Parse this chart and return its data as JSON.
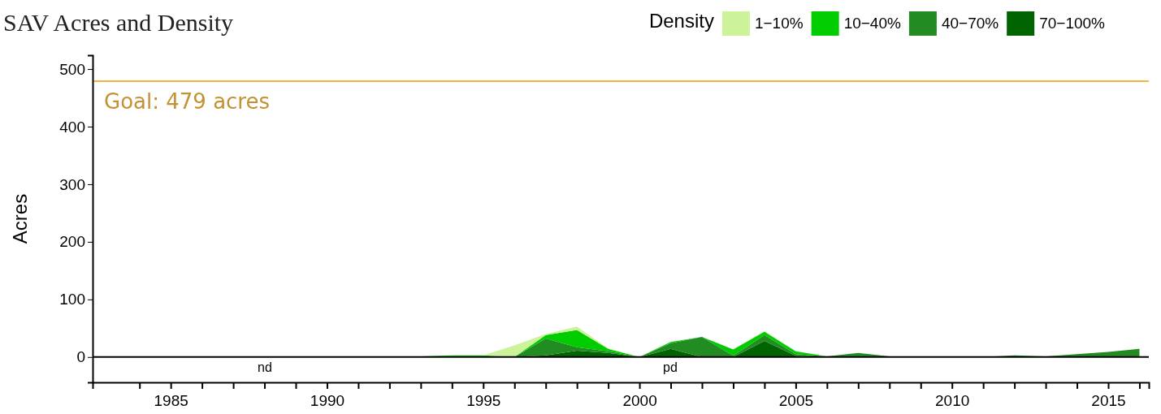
{
  "chart_data": {
    "type": "area",
    "title": "SAV Acres and Density",
    "ylabel": "Acres",
    "legend_title": "Density",
    "legend": "top right",
    "stacked": true,
    "grid": false,
    "x": [
      1984,
      1985,
      1986,
      1987,
      1988,
      1989,
      1990,
      1991,
      1992,
      1993,
      1994,
      1995,
      1996,
      1997,
      1998,
      1999,
      2000,
      2001,
      2002,
      2003,
      2004,
      2005,
      2006,
      2007,
      2008,
      2009,
      2010,
      2011,
      2012,
      2013,
      2014,
      2015,
      2016
    ],
    "series": [
      {
        "name": "70−100%",
        "color": "#006400",
        "values": [
          null,
          null,
          null,
          null,
          null,
          null,
          null,
          null,
          0,
          0,
          0,
          0,
          0,
          3,
          11,
          7,
          0,
          14,
          0,
          0,
          28,
          2,
          0,
          0,
          0,
          0,
          0,
          0,
          0,
          0,
          0,
          0,
          0
        ]
      },
      {
        "name": "40−70%",
        "color": "#228b22",
        "values": [
          1,
          1,
          null,
          null,
          null,
          null,
          null,
          null,
          1,
          1,
          0,
          0,
          0,
          29,
          6,
          3,
          0,
          10,
          35,
          2,
          10,
          3,
          1,
          7,
          1,
          0,
          0,
          0,
          3,
          1,
          5,
          9,
          14
        ]
      },
      {
        "name": "10−40%",
        "color": "#00cc00",
        "values": [
          null,
          null,
          null,
          null,
          null,
          null,
          null,
          null,
          0,
          0,
          3,
          3,
          0,
          6,
          30,
          4,
          0,
          2,
          0,
          11,
          6,
          5,
          0,
          0,
          0,
          0,
          0,
          0,
          0,
          0,
          0,
          0,
          0
        ]
      },
      {
        "name": "1−10%",
        "color": "#ccf29a",
        "values": [
          null,
          null,
          null,
          null,
          null,
          null,
          null,
          null,
          0,
          0,
          0,
          0,
          20,
          2,
          6,
          1,
          0,
          0,
          0,
          0,
          1,
          0,
          0,
          0,
          0,
          0,
          0,
          0,
          0,
          0,
          0,
          0,
          0
        ]
      }
    ],
    "xlim": [
      1982.5,
      2016.3
    ],
    "xticks": [
      {
        "value": 1984,
        "label": null
      },
      {
        "value": 1985,
        "label": "1985"
      },
      {
        "value": 1986,
        "label": null
      },
      {
        "value": 1987,
        "label": null
      },
      {
        "value": 1988,
        "label": null
      },
      {
        "value": 1989,
        "label": null
      },
      {
        "value": 1990,
        "label": "1990"
      },
      {
        "value": 1991,
        "label": null
      },
      {
        "value": 1992,
        "label": null
      },
      {
        "value": 1993,
        "label": null
      },
      {
        "value": 1994,
        "label": null
      },
      {
        "value": 1995,
        "label": "1995"
      },
      {
        "value": 1996,
        "label": null
      },
      {
        "value": 1997,
        "label": null
      },
      {
        "value": 1998,
        "label": null
      },
      {
        "value": 1999,
        "label": null
      },
      {
        "value": 2000,
        "label": "2000"
      },
      {
        "value": 2001,
        "label": null
      },
      {
        "value": 2002,
        "label": null
      },
      {
        "value": 2003,
        "label": null
      },
      {
        "value": 2004,
        "label": null
      },
      {
        "value": 2005,
        "label": "2005"
      },
      {
        "value": 2006,
        "label": null
      },
      {
        "value": 2007,
        "label": null
      },
      {
        "value": 2008,
        "label": null
      },
      {
        "value": 2009,
        "label": null
      },
      {
        "value": 2010,
        "label": "2010"
      },
      {
        "value": 2011,
        "label": null
      },
      {
        "value": 2012,
        "label": null
      },
      {
        "value": 2013,
        "label": null
      },
      {
        "value": 2014,
        "label": null
      },
      {
        "value": 2015,
        "label": "2015"
      },
      {
        "value": 2016,
        "label": null
      }
    ],
    "ylim": [
      -44,
      524
    ],
    "yticks": [
      0,
      100,
      200,
      300,
      400,
      500
    ],
    "ref_lines": [
      {
        "axis": "y",
        "value": 479,
        "label": "Goal: 479 acres",
        "color": "#f2b541"
      },
      {
        "axis": "y",
        "value": 0,
        "color": "#000000"
      }
    ],
    "annotations": [
      "nd",
      "pd"
    ]
  }
}
